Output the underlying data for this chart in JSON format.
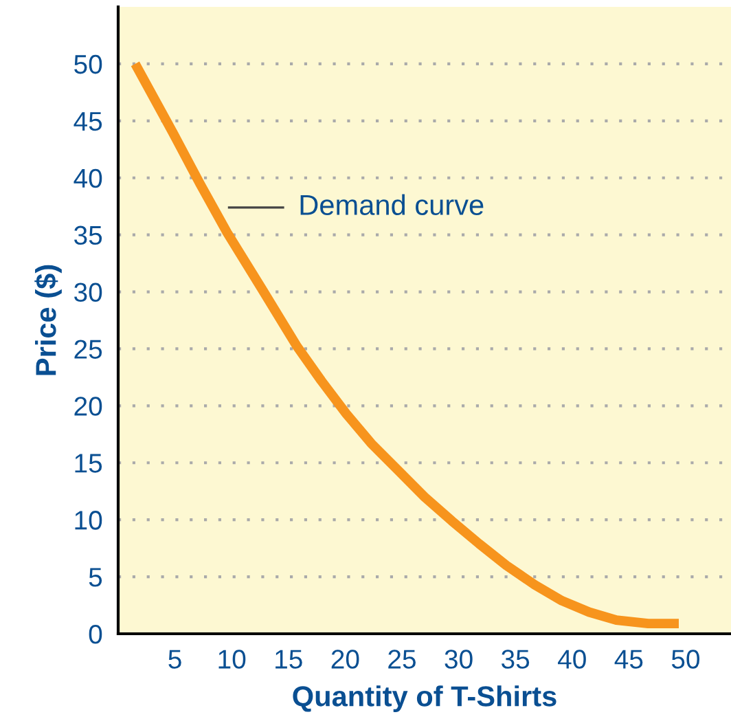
{
  "chart_data": {
    "type": "line",
    "xlabel": "Quantity of T-Shirts",
    "ylabel": "Price ($)",
    "x": [
      1.5,
      4.8,
      7.2,
      9.6,
      12.7,
      15.7,
      17.9,
      20.1,
      22.3,
      24.6,
      27.0,
      29.4,
      31.8,
      34.2,
      36.7,
      39.1,
      41.5,
      43.9,
      46.7,
      49.4
    ],
    "series": [
      {
        "color": "#f7941d",
        "values": [
          50,
          44,
          39.5,
          35.2,
          30.2,
          25.3,
          22.2,
          19.3,
          16.7,
          14.4,
          12.0,
          9.9,
          7.9,
          6.0,
          4.3,
          2.9,
          1.9,
          1.2,
          0.9,
          0.9
        ]
      }
    ],
    "xlim": [
      0,
      54
    ],
    "ylim": [
      0,
      55
    ],
    "xticks": [
      5,
      10,
      15,
      20,
      25,
      30,
      35,
      40,
      45,
      50
    ],
    "yticks": [
      0,
      5,
      10,
      15,
      20,
      25,
      30,
      35,
      40,
      45,
      50
    ],
    "grid": "y",
    "legend": false,
    "marker": "none",
    "line_style": "solid",
    "annotations": [
      "Demand curve"
    ]
  }
}
